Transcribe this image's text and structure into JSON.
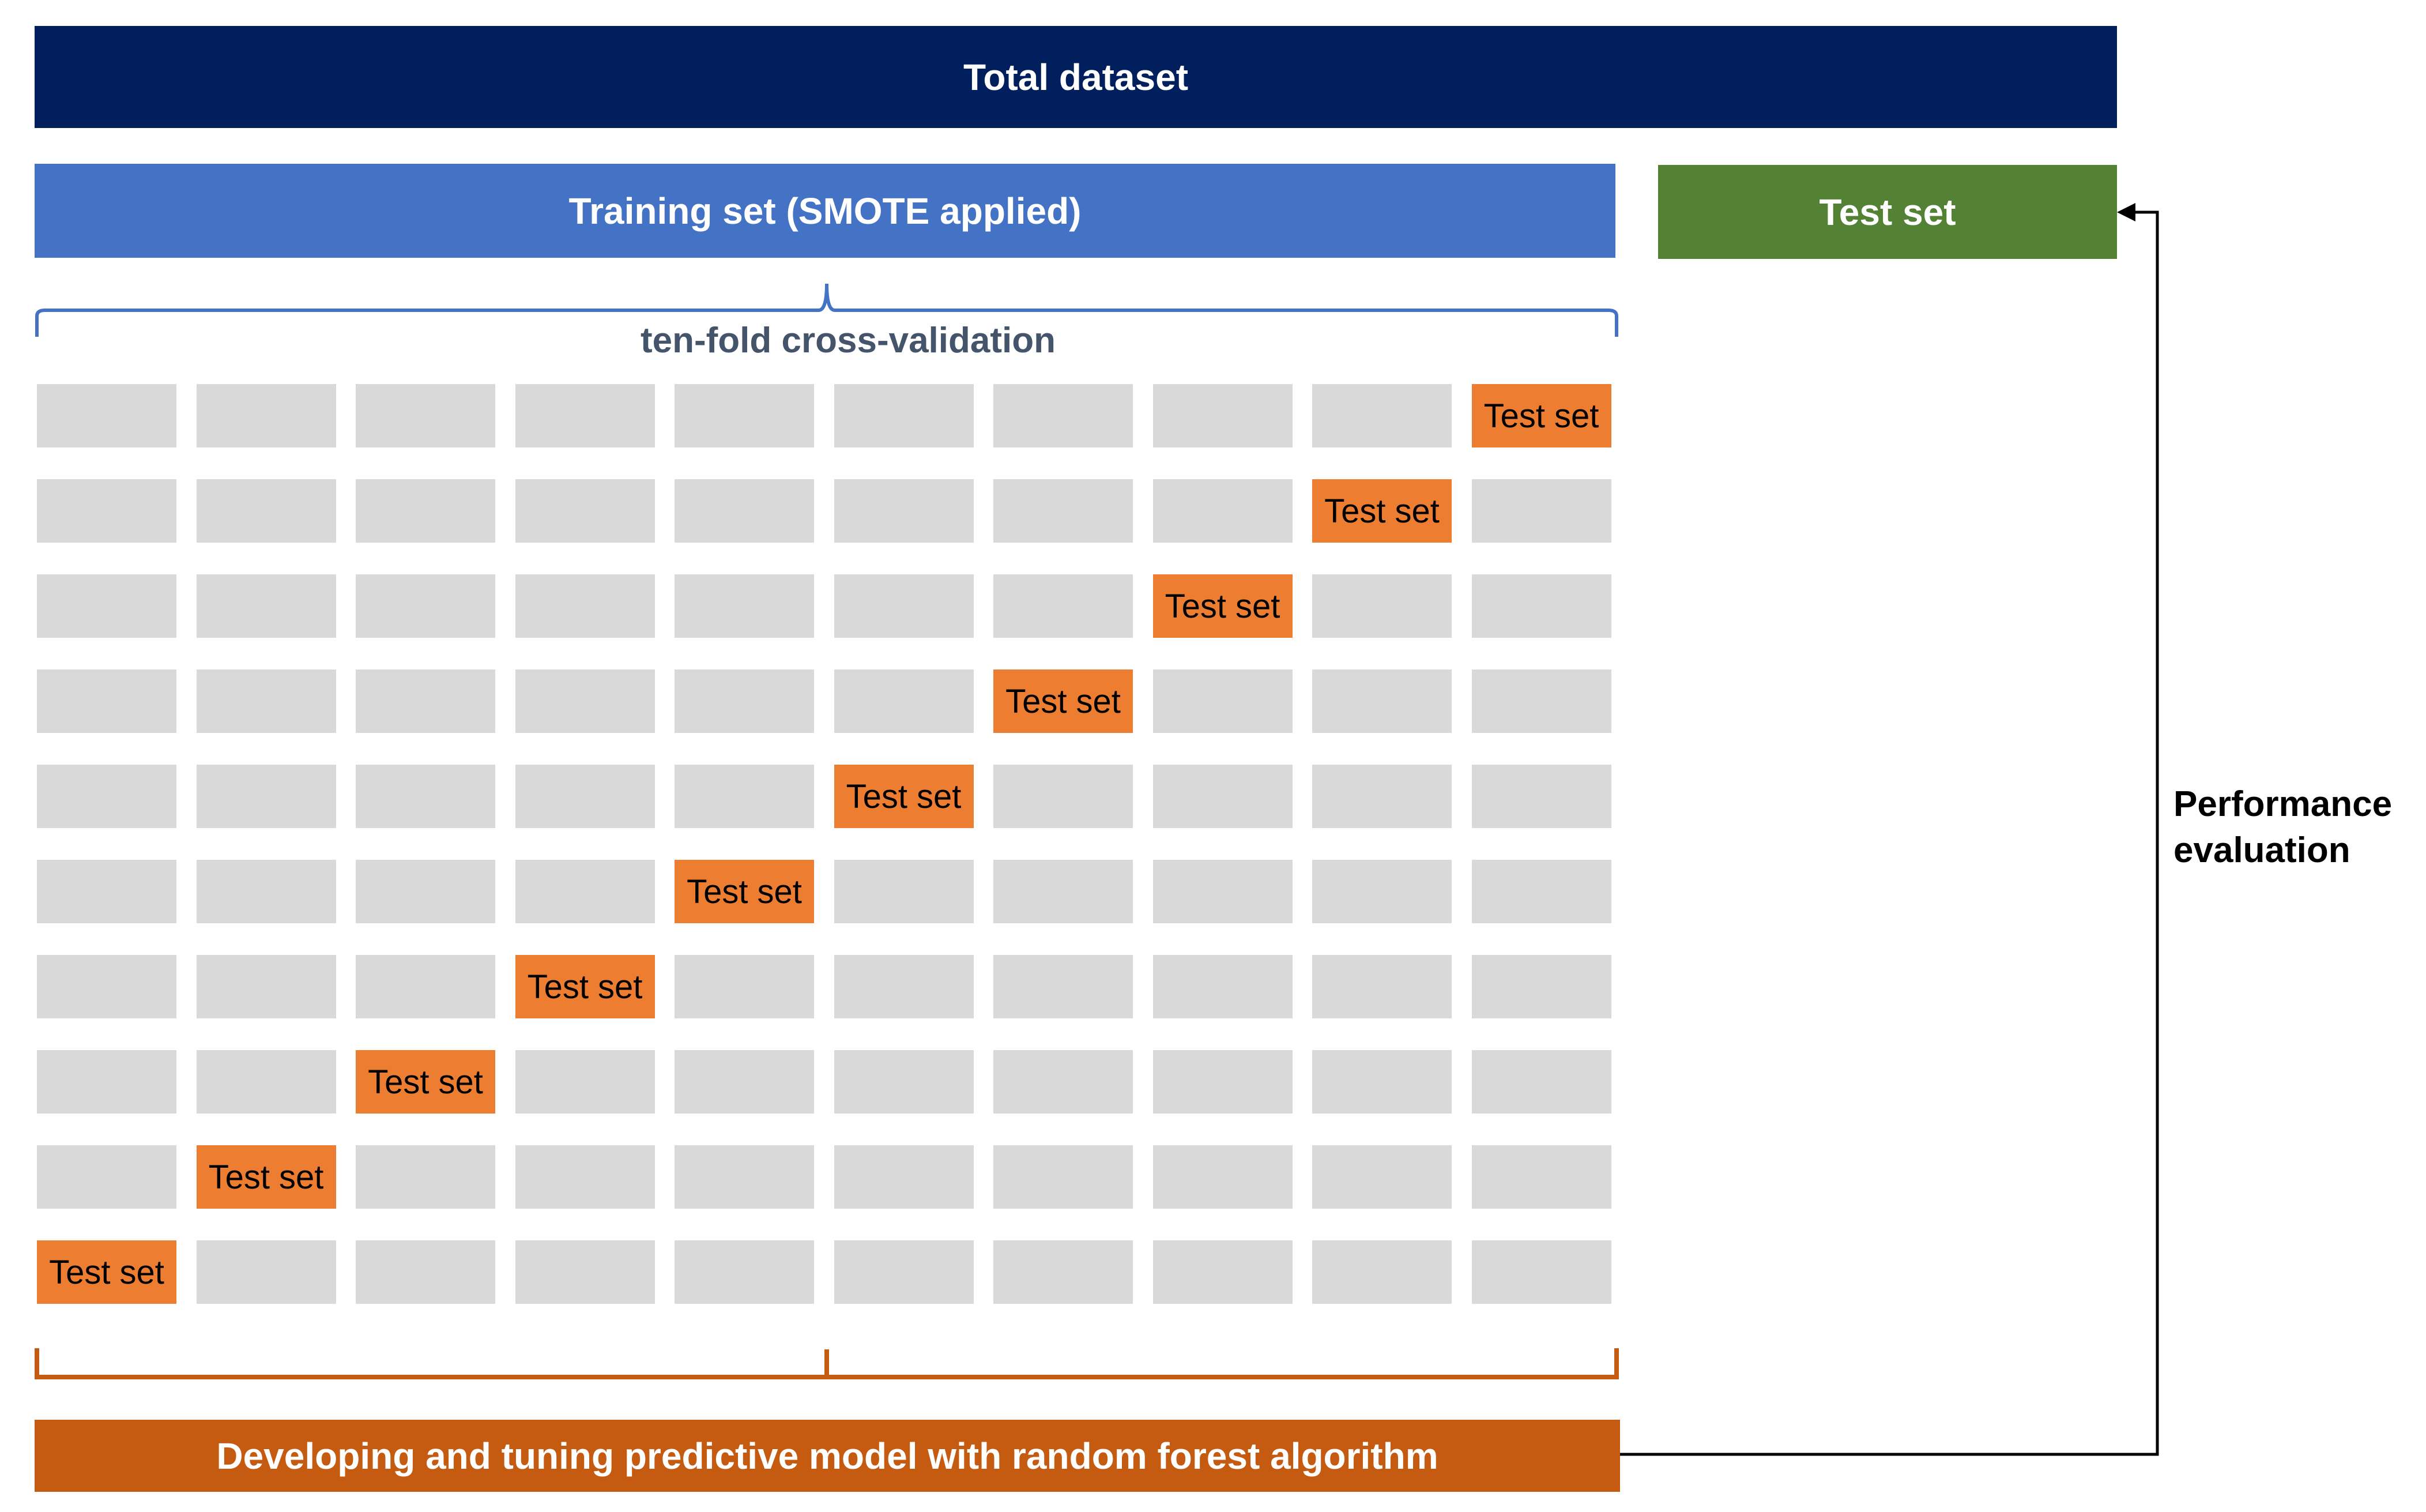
{
  "colors": {
    "total": "#001f5c",
    "training": "#4472c4",
    "test_bar": "#548235",
    "bottom": "#c55a11",
    "fold_test": "#ed7d31",
    "fold_train": "#d9d9d9",
    "cv_brace": "#4472c4",
    "bottom_bracket": "#c55a11",
    "cv_text": "#44546a"
  },
  "total_dataset": "Total dataset",
  "training_set": "Training set (SMOTE applied)",
  "test_set": "Test set",
  "cross_validation": "ten-fold cross-validation",
  "fold_test_label": "Test set",
  "folds": 10,
  "performance_evaluation": [
    "Performance",
    "evaluation"
  ],
  "model_development": "Developing and tuning predictive model with random forest algorithm"
}
